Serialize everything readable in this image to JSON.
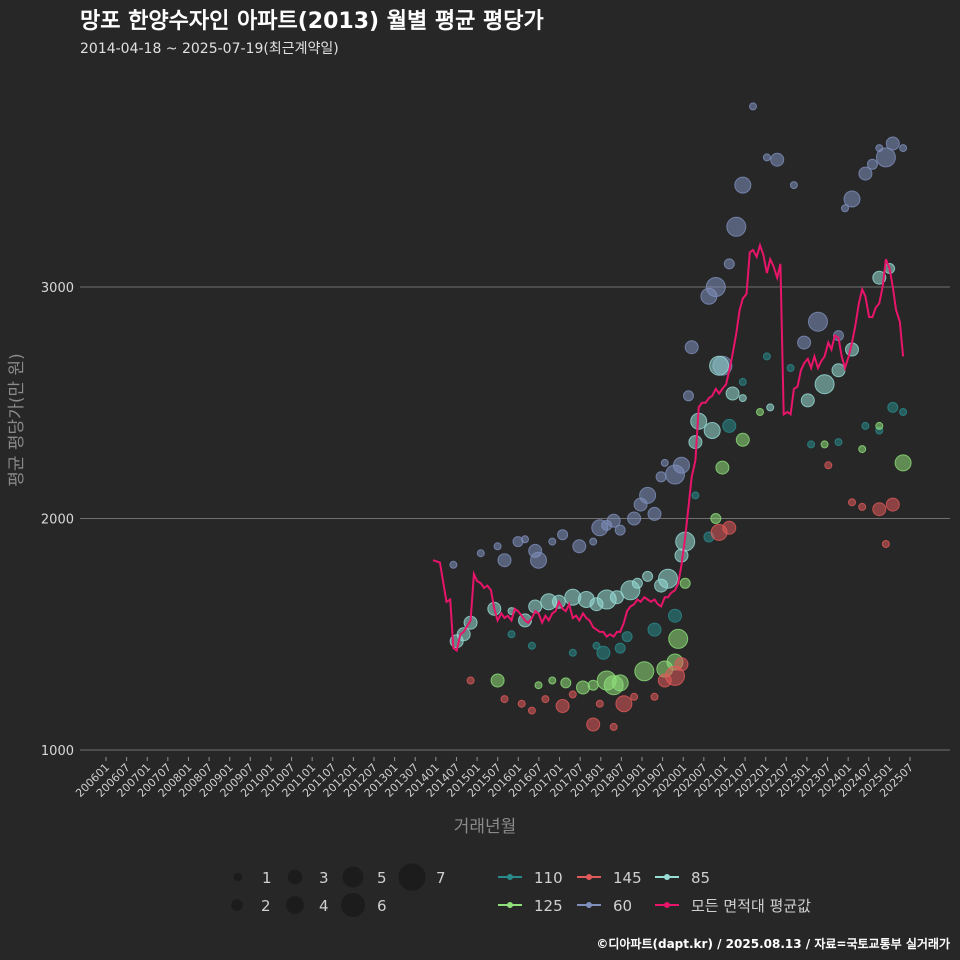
{
  "chart_data": {
    "type": "scatter",
    "title": "망포 한양수자인 아파트(2013) 월별 평균 평당가",
    "subtitle": "2014-04-18 ~ 2025-07-19(최근계약일)",
    "xlabel": "거래년월",
    "ylabel": "평균 평당가(만 원)",
    "caption": "©디아파트(dapt.kr) / 2025.08.13 / 자료=국토교통부 실거래가",
    "ylim": [
      900,
      3950
    ],
    "yticks": [
      1000,
      2000,
      3000
    ],
    "xrange": [
      2006.0,
      2025.67
    ],
    "xticks": [
      "200601",
      "200607",
      "200701",
      "200707",
      "200801",
      "200807",
      "200901",
      "200907",
      "201001",
      "201007",
      "201101",
      "201107",
      "201201",
      "201207",
      "201301",
      "201307",
      "201401",
      "201407",
      "201501",
      "201507",
      "201601",
      "201607",
      "201701",
      "201707",
      "201801",
      "201807",
      "201901",
      "201907",
      "202001",
      "202007",
      "202101",
      "202107",
      "202201",
      "202207",
      "202301",
      "202307",
      "202401",
      "202407",
      "202501",
      "202507"
    ],
    "size_legend": [
      "1",
      "2",
      "3",
      "4",
      "5",
      "6",
      "7"
    ],
    "colors": {
      "110": "#2a8a8c",
      "125": "#8fe07a",
      "145": "#e05a5a",
      "60": "#7f90bd",
      "85": "#98dcd6",
      "avg": "#e8156a"
    },
    "series": [
      {
        "name": "110",
        "points": [
          [
            2015.92,
            1500,
            1
          ],
          [
            2016.42,
            1450,
            1
          ],
          [
            2017.42,
            1420,
            1
          ],
          [
            2018.0,
            1450,
            1
          ],
          [
            2018.17,
            1420,
            3
          ],
          [
            2018.58,
            1440,
            2
          ],
          [
            2018.75,
            1490,
            2
          ],
          [
            2019.42,
            1520,
            3
          ],
          [
            2019.92,
            1580,
            3
          ],
          [
            2020.42,
            2100,
            1
          ],
          [
            2020.75,
            1920,
            2
          ],
          [
            2021.25,
            2400,
            3
          ],
          [
            2021.58,
            2590,
            1
          ],
          [
            2022.17,
            2700,
            1
          ],
          [
            2022.75,
            2650,
            1
          ],
          [
            2023.25,
            2320,
            1
          ],
          [
            2023.92,
            2330,
            1
          ],
          [
            2024.58,
            2400,
            1
          ],
          [
            2024.92,
            2380,
            1
          ],
          [
            2025.25,
            2480,
            2
          ],
          [
            2025.5,
            2460,
            1
          ]
        ]
      },
      {
        "name": "125",
        "points": [
          [
            2015.58,
            1300,
            3
          ],
          [
            2016.58,
            1280,
            1
          ],
          [
            2016.92,
            1300,
            1
          ],
          [
            2017.25,
            1290,
            2
          ],
          [
            2017.67,
            1270,
            3
          ],
          [
            2017.92,
            1280,
            2
          ],
          [
            2018.25,
            1300,
            5
          ],
          [
            2018.42,
            1280,
            5
          ],
          [
            2018.58,
            1290,
            4
          ],
          [
            2019.17,
            1340,
            5
          ],
          [
            2019.67,
            1350,
            4
          ],
          [
            2019.92,
            1380,
            4
          ],
          [
            2020.0,
            1480,
            5
          ],
          [
            2020.17,
            1720,
            2
          ],
          [
            2020.92,
            2000,
            2
          ],
          [
            2021.08,
            2220,
            3
          ],
          [
            2021.58,
            2340,
            3
          ],
          [
            2022.0,
            2460,
            1
          ],
          [
            2023.58,
            2320,
            1
          ],
          [
            2024.5,
            2300,
            1
          ],
          [
            2024.92,
            2400,
            1
          ],
          [
            2025.5,
            2240,
            4
          ]
        ]
      },
      {
        "name": "145",
        "points": [
          [
            2014.92,
            1300,
            1
          ],
          [
            2015.75,
            1220,
            1
          ],
          [
            2016.17,
            1200,
            1
          ],
          [
            2016.42,
            1170,
            1
          ],
          [
            2016.75,
            1220,
            1
          ],
          [
            2017.17,
            1190,
            3
          ],
          [
            2017.42,
            1240,
            1
          ],
          [
            2017.92,
            1110,
            3
          ],
          [
            2018.08,
            1200,
            1
          ],
          [
            2018.42,
            1100,
            1
          ],
          [
            2018.67,
            1200,
            4
          ],
          [
            2018.92,
            1230,
            1
          ],
          [
            2019.42,
            1230,
            1
          ],
          [
            2019.67,
            1300,
            3
          ],
          [
            2019.92,
            1320,
            5
          ],
          [
            2020.08,
            1370,
            3
          ],
          [
            2021.0,
            1940,
            4
          ],
          [
            2021.25,
            1960,
            3
          ],
          [
            2023.67,
            2230,
            1
          ],
          [
            2024.25,
            2070,
            1
          ],
          [
            2024.5,
            2050,
            1
          ],
          [
            2024.92,
            2040,
            3
          ],
          [
            2025.08,
            1890,
            1
          ],
          [
            2025.25,
            2060,
            3
          ]
        ]
      },
      {
        "name": "60",
        "points": [
          [
            2014.5,
            1800,
            1
          ],
          [
            2015.17,
            1850,
            1
          ],
          [
            2015.58,
            1880,
            1
          ],
          [
            2015.75,
            1820,
            3
          ],
          [
            2016.08,
            1900,
            2
          ],
          [
            2016.25,
            1910,
            1
          ],
          [
            2016.5,
            1860,
            3
          ],
          [
            2016.58,
            1820,
            4
          ],
          [
            2016.92,
            1900,
            1
          ],
          [
            2017.17,
            1930,
            2
          ],
          [
            2017.58,
            1880,
            3
          ],
          [
            2017.92,
            1900,
            1
          ],
          [
            2018.08,
            1960,
            4
          ],
          [
            2018.25,
            1970,
            2
          ],
          [
            2018.42,
            1990,
            3
          ],
          [
            2018.58,
            1950,
            2
          ],
          [
            2018.92,
            2000,
            3
          ],
          [
            2019.08,
            2060,
            3
          ],
          [
            2019.25,
            2100,
            4
          ],
          [
            2019.42,
            2020,
            3
          ],
          [
            2019.58,
            2180,
            2
          ],
          [
            2019.67,
            2240,
            1
          ],
          [
            2019.92,
            2190,
            5
          ],
          [
            2020.08,
            2230,
            4
          ],
          [
            2020.25,
            2530,
            2
          ],
          [
            2020.33,
            2740,
            3
          ],
          [
            2020.75,
            2960,
            4
          ],
          [
            2020.92,
            3000,
            5
          ],
          [
            2021.08,
            2660,
            5
          ],
          [
            2021.25,
            3100,
            2
          ],
          [
            2021.42,
            3260,
            5
          ],
          [
            2021.58,
            3440,
            4
          ],
          [
            2021.83,
            3780,
            1
          ],
          [
            2022.17,
            3560,
            1
          ],
          [
            2022.42,
            3550,
            3
          ],
          [
            2022.83,
            3440,
            1
          ],
          [
            2023.08,
            2760,
            3
          ],
          [
            2023.42,
            2850,
            5
          ],
          [
            2023.92,
            2790,
            2
          ],
          [
            2024.08,
            3340,
            1
          ],
          [
            2024.25,
            3380,
            4
          ],
          [
            2024.58,
            3490,
            3
          ],
          [
            2024.75,
            3530,
            2
          ],
          [
            2024.92,
            3600,
            1
          ],
          [
            2025.08,
            3560,
            5
          ],
          [
            2025.25,
            3620,
            3
          ],
          [
            2025.5,
            3600,
            1
          ]
        ]
      },
      {
        "name": "85",
        "points": [
          [
            2014.58,
            1470,
            3
          ],
          [
            2014.75,
            1500,
            3
          ],
          [
            2014.92,
            1550,
            3
          ],
          [
            2015.5,
            1610,
            3
          ],
          [
            2015.92,
            1600,
            1
          ],
          [
            2016.25,
            1560,
            3
          ],
          [
            2016.5,
            1620,
            3
          ],
          [
            2016.83,
            1640,
            4
          ],
          [
            2017.08,
            1640,
            3
          ],
          [
            2017.42,
            1660,
            4
          ],
          [
            2017.75,
            1650,
            4
          ],
          [
            2018.0,
            1630,
            3
          ],
          [
            2018.25,
            1650,
            5
          ],
          [
            2018.5,
            1660,
            3
          ],
          [
            2018.83,
            1690,
            5
          ],
          [
            2019.0,
            1720,
            2
          ],
          [
            2019.25,
            1750,
            2
          ],
          [
            2019.58,
            1710,
            3
          ],
          [
            2019.75,
            1740,
            5
          ],
          [
            2020.08,
            1840,
            3
          ],
          [
            2020.17,
            1900,
            5
          ],
          [
            2020.42,
            2330,
            3
          ],
          [
            2020.5,
            2420,
            4
          ],
          [
            2020.83,
            2380,
            4
          ],
          [
            2021.0,
            2660,
            5
          ],
          [
            2021.33,
            2540,
            3
          ],
          [
            2021.58,
            2520,
            1
          ],
          [
            2022.25,
            2480,
            1
          ],
          [
            2023.17,
            2510,
            3
          ],
          [
            2023.58,
            2580,
            5
          ],
          [
            2023.92,
            2640,
            3
          ],
          [
            2024.25,
            2730,
            3
          ],
          [
            2024.92,
            3040,
            3
          ],
          [
            2025.17,
            3080,
            2
          ]
        ]
      }
    ],
    "avg_line": [
      [
        2014.0,
        1820
      ],
      [
        2014.17,
        1810
      ],
      [
        2014.33,
        1640
      ],
      [
        2014.42,
        1650
      ],
      [
        2014.5,
        1440
      ],
      [
        2014.58,
        1430
      ],
      [
        2014.67,
        1500
      ],
      [
        2014.75,
        1510
      ],
      [
        2014.92,
        1560
      ],
      [
        2015.0,
        1760
      ],
      [
        2015.08,
        1730
      ],
      [
        2015.17,
        1720
      ],
      [
        2015.25,
        1700
      ],
      [
        2015.33,
        1710
      ],
      [
        2015.42,
        1690
      ],
      [
        2015.5,
        1610
      ],
      [
        2015.58,
        1560
      ],
      [
        2015.67,
        1590
      ],
      [
        2015.75,
        1570
      ],
      [
        2015.83,
        1580
      ],
      [
        2015.92,
        1560
      ],
      [
        2016.0,
        1610
      ],
      [
        2016.08,
        1600
      ],
      [
        2016.17,
        1580
      ],
      [
        2016.25,
        1560
      ],
      [
        2016.33,
        1550
      ],
      [
        2016.42,
        1570
      ],
      [
        2016.5,
        1600
      ],
      [
        2016.58,
        1590
      ],
      [
        2016.67,
        1550
      ],
      [
        2016.75,
        1580
      ],
      [
        2016.83,
        1560
      ],
      [
        2016.92,
        1590
      ],
      [
        2017.0,
        1600
      ],
      [
        2017.08,
        1640
      ],
      [
        2017.17,
        1610
      ],
      [
        2017.25,
        1600
      ],
      [
        2017.33,
        1630
      ],
      [
        2017.42,
        1570
      ],
      [
        2017.5,
        1580
      ],
      [
        2017.58,
        1560
      ],
      [
        2017.67,
        1590
      ],
      [
        2017.75,
        1570
      ],
      [
        2017.83,
        1560
      ],
      [
        2017.92,
        1530
      ],
      [
        2018.0,
        1520
      ],
      [
        2018.08,
        1510
      ],
      [
        2018.17,
        1510
      ],
      [
        2018.25,
        1490
      ],
      [
        2018.33,
        1500
      ],
      [
        2018.42,
        1490
      ],
      [
        2018.5,
        1510
      ],
      [
        2018.58,
        1510
      ],
      [
        2018.67,
        1550
      ],
      [
        2018.75,
        1600
      ],
      [
        2018.83,
        1620
      ],
      [
        2018.92,
        1630
      ],
      [
        2019.0,
        1650
      ],
      [
        2019.08,
        1640
      ],
      [
        2019.17,
        1660
      ],
      [
        2019.25,
        1650
      ],
      [
        2019.33,
        1640
      ],
      [
        2019.42,
        1650
      ],
      [
        2019.5,
        1630
      ],
      [
        2019.58,
        1620
      ],
      [
        2019.67,
        1660
      ],
      [
        2019.75,
        1660
      ],
      [
        2019.83,
        1680
      ],
      [
        2019.92,
        1690
      ],
      [
        2020.0,
        1720
      ],
      [
        2020.08,
        1800
      ],
      [
        2020.17,
        1920
      ],
      [
        2020.25,
        2050
      ],
      [
        2020.33,
        2180
      ],
      [
        2020.42,
        2250
      ],
      [
        2020.5,
        2480
      ],
      [
        2020.58,
        2500
      ],
      [
        2020.67,
        2500
      ],
      [
        2020.75,
        2520
      ],
      [
        2020.83,
        2530
      ],
      [
        2020.92,
        2560
      ],
      [
        2021.0,
        2540
      ],
      [
        2021.08,
        2560
      ],
      [
        2021.17,
        2580
      ],
      [
        2021.25,
        2640
      ],
      [
        2021.33,
        2710
      ],
      [
        2021.42,
        2800
      ],
      [
        2021.5,
        2900
      ],
      [
        2021.58,
        2950
      ],
      [
        2021.67,
        2970
      ],
      [
        2021.75,
        3150
      ],
      [
        2021.83,
        3160
      ],
      [
        2021.92,
        3130
      ],
      [
        2022.0,
        3180
      ],
      [
        2022.08,
        3140
      ],
      [
        2022.17,
        3060
      ],
      [
        2022.25,
        3120
      ],
      [
        2022.33,
        3090
      ],
      [
        2022.42,
        3040
      ],
      [
        2022.5,
        3100
      ],
      [
        2022.58,
        2450
      ],
      [
        2022.67,
        2460
      ],
      [
        2022.75,
        2450
      ],
      [
        2022.83,
        2560
      ],
      [
        2022.92,
        2570
      ],
      [
        2023.0,
        2640
      ],
      [
        2023.08,
        2670
      ],
      [
        2023.17,
        2690
      ],
      [
        2023.25,
        2650
      ],
      [
        2023.33,
        2700
      ],
      [
        2023.42,
        2650
      ],
      [
        2023.5,
        2680
      ],
      [
        2023.58,
        2700
      ],
      [
        2023.67,
        2760
      ],
      [
        2023.75,
        2730
      ],
      [
        2023.83,
        2790
      ],
      [
        2023.92,
        2780
      ],
      [
        2024.0,
        2700
      ],
      [
        2024.08,
        2650
      ],
      [
        2024.17,
        2700
      ],
      [
        2024.25,
        2760
      ],
      [
        2024.33,
        2830
      ],
      [
        2024.42,
        2930
      ],
      [
        2024.5,
        2990
      ],
      [
        2024.58,
        2960
      ],
      [
        2024.67,
        2870
      ],
      [
        2024.75,
        2870
      ],
      [
        2024.83,
        2910
      ],
      [
        2024.92,
        2930
      ],
      [
        2025.0,
        3000
      ],
      [
        2025.08,
        3120
      ],
      [
        2025.17,
        3080
      ],
      [
        2025.25,
        3000
      ],
      [
        2025.33,
        2900
      ],
      [
        2025.42,
        2850
      ],
      [
        2025.5,
        2700
      ]
    ]
  },
  "legend": {
    "series_labels": [
      "110",
      "145",
      "85",
      "125",
      "60",
      "모든 면적대 평균값"
    ]
  }
}
